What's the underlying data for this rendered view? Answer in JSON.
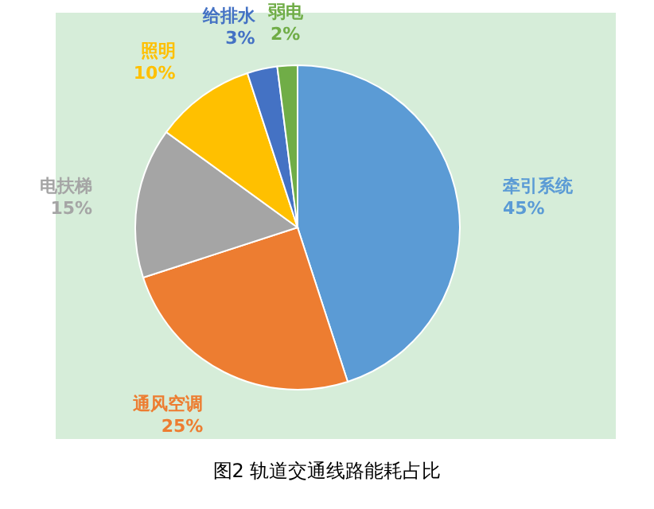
{
  "chart_data": {
    "type": "pie",
    "categories": [
      "牵引系统",
      "通风空调",
      "电扶梯",
      "照明",
      "给排水",
      "弱电"
    ],
    "values": [
      45,
      25,
      15,
      10,
      3,
      2
    ],
    "colors": [
      "#5b9bd5",
      "#ed7d31",
      "#a5a5a5",
      "#ffc000",
      "#4472c4",
      "#70ad47"
    ],
    "value_labels": [
      "45%",
      "25%",
      "15%",
      "10%",
      "3%",
      "2%"
    ],
    "annotations": [
      "图2 轨道交通线路能耗占比"
    ]
  }
}
